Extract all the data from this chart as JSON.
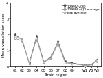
{
  "x_labels": [
    "G1",
    "G2",
    "G3",
    "G4",
    "G5",
    "G6",
    "G7",
    "G8",
    "G9",
    "W1",
    "W2",
    "W3"
  ],
  "series": [
    {
      "label": "129MV vCJD",
      "values": [
        2.0,
        1.65,
        0.2,
        1.85,
        0.3,
        0.55,
        1.55,
        0.3,
        0.2,
        0.05,
        0.1,
        0.38
      ],
      "errors": [
        0.08,
        0.1,
        0.04,
        0.12,
        0.04,
        0.08,
        0.12,
        0.06,
        0.04,
        0.02,
        0.03,
        0.08
      ],
      "color": "#444444",
      "marker": "s",
      "fillstyle": "full",
      "linestyle": "-"
    },
    {
      "label": "129MM vCJD average",
      "values": [
        1.75,
        1.6,
        0.15,
        1.72,
        0.25,
        0.48,
        1.42,
        0.22,
        0.15,
        0.05,
        0.08,
        0.33
      ],
      "errors": [
        0.1,
        0.1,
        0.03,
        0.14,
        0.05,
        0.08,
        0.14,
        0.06,
        0.04,
        0.02,
        0.03,
        0.08
      ],
      "color": "#888888",
      "marker": "s",
      "fillstyle": "none",
      "linestyle": "-"
    },
    {
      "label": "BSE average",
      "values": [
        1.88,
        1.68,
        0.17,
        1.78,
        0.27,
        0.52,
        1.48,
        0.26,
        0.17,
        0.04,
        0.09,
        0.36
      ],
      "errors": [
        0.08,
        0.09,
        0.03,
        0.12,
        0.04,
        0.07,
        0.13,
        0.05,
        0.03,
        0.02,
        0.03,
        0.07
      ],
      "color": "#aaaaaa",
      "marker": "^",
      "fillstyle": "none",
      "linestyle": "-"
    }
  ],
  "ylabel": "Mean vacuolation score",
  "xlabel": "Brain region",
  "ylim": [
    0,
    4
  ],
  "yticks": [
    0,
    1,
    2,
    3,
    4
  ],
  "background_color": "#ffffff",
  "label_fontsize": 4.0,
  "tick_fontsize": 3.5,
  "legend_fontsize": 3.2
}
